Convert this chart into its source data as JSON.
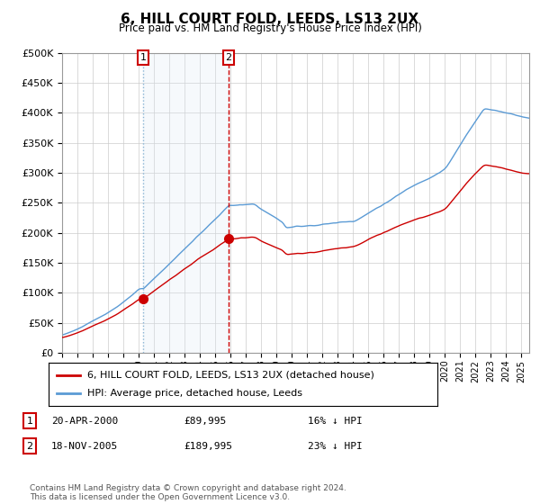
{
  "title": "6, HILL COURT FOLD, LEEDS, LS13 2UX",
  "subtitle": "Price paid vs. HM Land Registry's House Price Index (HPI)",
  "property_label": "6, HILL COURT FOLD, LEEDS, LS13 2UX (detached house)",
  "hpi_label": "HPI: Average price, detached house, Leeds",
  "property_color": "#cc0000",
  "hpi_color": "#5b9bd5",
  "shade_color": "#dce9f5",
  "transaction1_date": "20-APR-2000",
  "transaction1_price": "£89,995",
  "transaction1_hpi": "16% ↓ HPI",
  "transaction1_year": 2000.29,
  "transaction1_value": 89995,
  "transaction2_date": "18-NOV-2005",
  "transaction2_price": "£189,995",
  "transaction2_hpi": "23% ↓ HPI",
  "transaction2_year": 2005.88,
  "transaction2_value": 189995,
  "footer": "Contains HM Land Registry data © Crown copyright and database right 2024.\nThis data is licensed under the Open Government Licence v3.0.",
  "ylim": [
    0,
    500000
  ],
  "yticks": [
    0,
    50000,
    100000,
    150000,
    200000,
    250000,
    300000,
    350000,
    400000,
    450000,
    500000
  ],
  "xmin": 1995,
  "xmax": 2025.5,
  "background_color": "#ffffff",
  "grid_color": "#cccccc"
}
